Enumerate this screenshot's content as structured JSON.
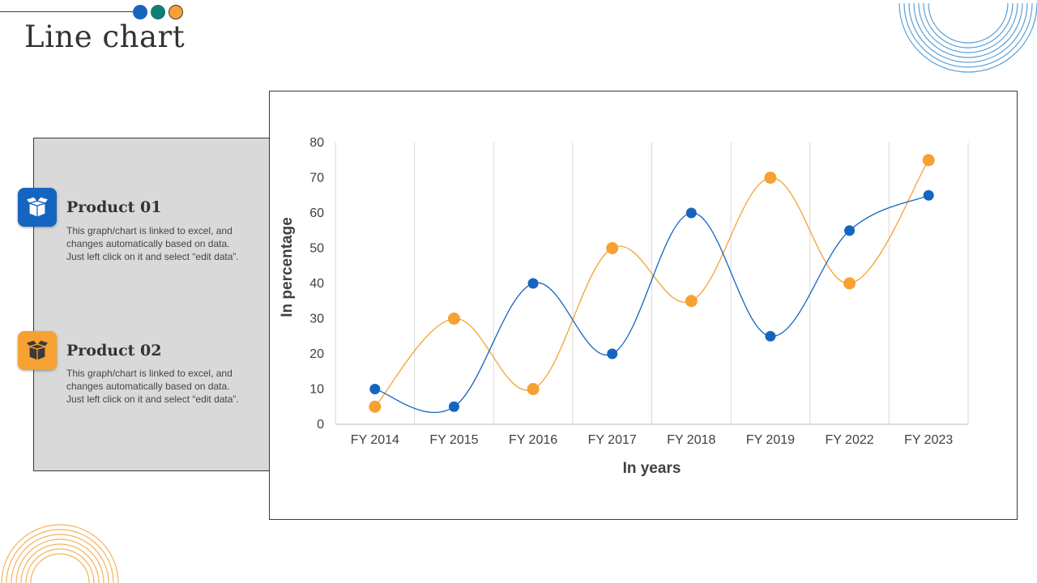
{
  "page": {
    "title": "Line chart"
  },
  "products": [
    {
      "title": "Product 01",
      "description": "This graph/chart is linked to excel, and changes automatically based on data. Just left click on it and select “edit data”.",
      "color": "#1565c0",
      "icon": "box-icon"
    },
    {
      "title": "Product 02",
      "description": "This graph/chart is linked to excel, and changes automatically based on data. Just left click on it and select “edit data”.",
      "color": "#f7a132",
      "icon": "box-icon"
    }
  ],
  "colors": {
    "blue": "#1565c0",
    "orange": "#f7a132",
    "teal": "#0f7e73",
    "panel": "#d9d9d9",
    "grid": "#d9d9d9",
    "text": "#404040"
  },
  "chart_data": {
    "type": "line",
    "categories": [
      "FY 2014",
      "FY 2015",
      "FY 2016",
      "FY 2017",
      "FY 2018",
      "FY 2019",
      "FY 2022",
      "FY 2023"
    ],
    "series": [
      {
        "values": [
          10,
          5,
          40,
          20,
          60,
          25,
          55,
          65
        ],
        "color": "#1565c0"
      },
      {
        "values": [
          5,
          30,
          10,
          50,
          35,
          70,
          40,
          75
        ],
        "color": "#f7a132"
      }
    ],
    "xlabel": "In years",
    "ylabel": "In percentage",
    "ylim": [
      0,
      80
    ],
    "yticks": [
      0,
      10,
      20,
      30,
      40,
      50,
      60,
      70,
      80
    ],
    "grid": "vertical",
    "smooth": true
  }
}
